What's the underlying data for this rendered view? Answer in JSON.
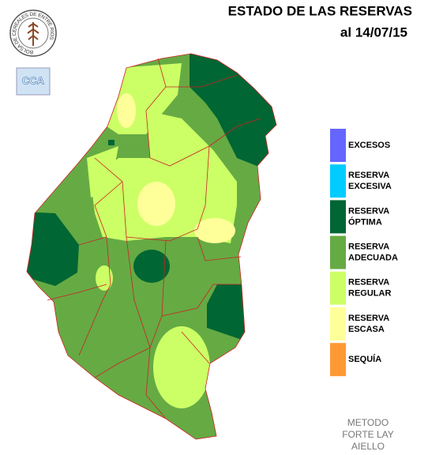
{
  "header": {
    "title": "ESTADO DE LAS RESERVAS",
    "date": "al 14/07/15"
  },
  "logos": {
    "institution": "BOLSA DE CEREALES DE ENTRE RIOS",
    "badge": "CCA"
  },
  "legend": [
    {
      "lines": [
        "EXCESOS"
      ],
      "color": "#6666ff"
    },
    {
      "lines": [
        "RESERVA",
        "EXCESIVA"
      ],
      "color": "#00ccff"
    },
    {
      "lines": [
        "RESERVA",
        "ÓPTIMA"
      ],
      "color": "#006633"
    },
    {
      "lines": [
        "RESERVA",
        "ADECUADA"
      ],
      "color": "#66aa44"
    },
    {
      "lines": [
        "RESERVA",
        "REGULAR"
      ],
      "color": "#ccff66"
    },
    {
      "lines": [
        "RESERVA",
        "ESCASA"
      ],
      "color": "#ffff99"
    },
    {
      "lines": [
        "SEQUÍA"
      ],
      "color": "#ff9933"
    }
  ],
  "method": [
    "METODO",
    "FORTE LAY",
    "AIELLO"
  ]
}
